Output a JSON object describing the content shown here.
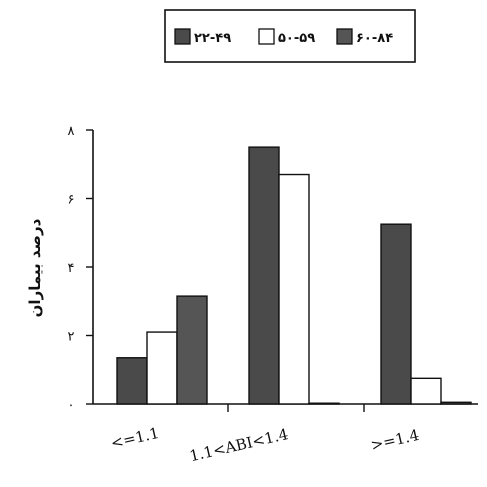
{
  "chart_data": {
    "type": "bar",
    "title": "",
    "xlabel": "",
    "ylabel": "درصد بیماران",
    "ylim": [
      0,
      8
    ],
    "yticks": [
      0,
      2,
      4,
      6,
      8
    ],
    "ytick_labels": [
      "۰",
      "۲",
      "۴",
      "۶",
      "۸"
    ],
    "categories": [
      "<=1.1",
      "1.1<ABI<1.4",
      ">=1.4"
    ],
    "series": [
      {
        "name": "۲۲-۴۹",
        "color": "#4a4a4a",
        "values": [
          1.35,
          7.5,
          5.25
        ]
      },
      {
        "name": "۵۰-۵۹",
        "color": "#ffffff",
        "values": [
          2.1,
          6.7,
          0.75
        ]
      },
      {
        "name": "۶۰-۸۴",
        "color": "#555555",
        "values": [
          3.15,
          0,
          0.05
        ]
      }
    ],
    "series_order_by_category": [
      [
        "۲۲-۴۹",
        "۵۰-۵۹",
        "۶۰-۸۴"
      ],
      [
        "۲۲-۴۹",
        "۵۰-۵۹",
        "۶۰-۸۴"
      ],
      [
        "۲۲-۴۹",
        "۵۰-۵۹",
        "۶۰-۸۴"
      ]
    ],
    "grid": false,
    "legend_position": "top-center"
  }
}
